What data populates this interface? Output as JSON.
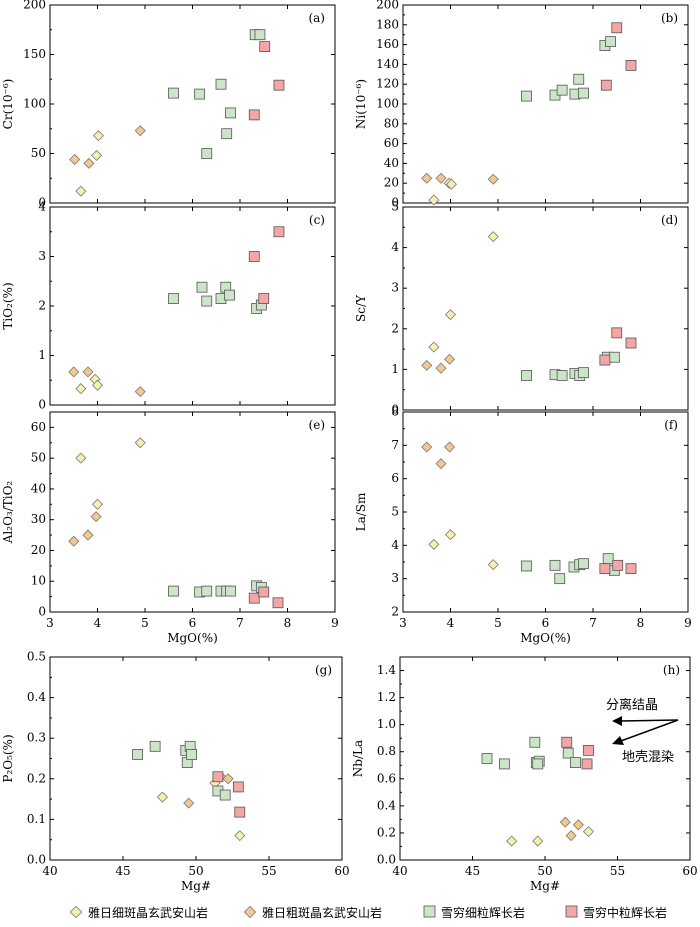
{
  "legend": {
    "items": [
      {
        "label": "雅日细斑晶玄武安山岩",
        "marker": "diamond",
        "color": "#f5f0b0"
      },
      {
        "label": "雅日粗斑晶玄武安山岩",
        "marker": "diamond",
        "color": "#f0c890"
      },
      {
        "label": "雪穷细粒辉长岩",
        "marker": "square",
        "color": "#cce4c8"
      },
      {
        "label": "雪穷中粒辉长岩",
        "marker": "square",
        "color": "#f4a6a6"
      }
    ]
  },
  "chart_data": [
    {
      "type": "scatter",
      "panel": "a",
      "tag": "(a)",
      "ylabel": "Cr(10⁻⁶)",
      "xlabel": "",
      "xlim": [
        3,
        9
      ],
      "ylim": [
        0,
        200
      ],
      "xticks": [],
      "yticks": [
        "0",
        "50",
        "100",
        "150",
        "200"
      ],
      "series": [
        {
          "name": "雅日细斑晶玄武安山岩",
          "points": [
            [
              3.65,
              12
            ],
            [
              3.98,
              48
            ],
            [
              4.02,
              68
            ]
          ]
        },
        {
          "name": "雅日粗斑晶玄武安山岩",
          "points": [
            [
              3.52,
              44
            ],
            [
              3.82,
              40
            ],
            [
              4.9,
              73
            ]
          ]
        },
        {
          "name": "雪穷细粒辉长岩",
          "points": [
            [
              5.6,
              111
            ],
            [
              6.15,
              110
            ],
            [
              6.3,
              50
            ],
            [
              6.6,
              120
            ],
            [
              6.72,
              70
            ],
            [
              6.8,
              91
            ],
            [
              7.32,
              170
            ],
            [
              7.42,
              170
            ]
          ]
        },
        {
          "name": "雪穷中粒辉长岩",
          "points": [
            [
              7.3,
              89
            ],
            [
              7.52,
              158
            ],
            [
              7.82,
              119
            ]
          ]
        }
      ]
    },
    {
      "type": "scatter",
      "panel": "b",
      "tag": "(b)",
      "ylabel": "Ni(10⁻⁶)",
      "xlabel": "",
      "xlim": [
        3,
        9
      ],
      "ylim": [
        0,
        200
      ],
      "xticks": [],
      "yticks": [
        "0",
        "20",
        "40",
        "60",
        "80",
        "100",
        "120",
        "140",
        "160",
        "180",
        "200"
      ],
      "series": [
        {
          "name": "雅日细斑晶玄武安山岩",
          "points": [
            [
              3.65,
              3
            ],
            [
              3.97,
              20
            ],
            [
              4.02,
              19
            ]
          ]
        },
        {
          "name": "雅日粗斑晶玄武安山岩",
          "points": [
            [
              3.5,
              25
            ],
            [
              3.8,
              25
            ],
            [
              4.9,
              24
            ]
          ]
        },
        {
          "name": "雪穷细粒辉长岩",
          "points": [
            [
              5.6,
              108
            ],
            [
              6.2,
              109
            ],
            [
              6.35,
              114
            ],
            [
              6.62,
              110
            ],
            [
              6.7,
              125
            ],
            [
              6.8,
              111
            ],
            [
              7.25,
              159
            ],
            [
              7.37,
              163
            ]
          ]
        },
        {
          "name": "雪穷中粒辉长岩",
          "points": [
            [
              7.28,
              119
            ],
            [
              7.5,
              177
            ],
            [
              7.8,
              139
            ]
          ]
        }
      ]
    },
    {
      "type": "scatter",
      "panel": "c",
      "tag": "(c)",
      "ylabel": "TiO₂(%)",
      "xlabel": "",
      "xlim": [
        3,
        9
      ],
      "ylim": [
        0,
        4
      ],
      "xticks": [],
      "yticks": [
        "0",
        "1",
        "2",
        "3",
        "4"
      ],
      "series": [
        {
          "name": "雅日细斑晶玄武安山岩",
          "points": [
            [
              3.65,
              0.33
            ],
            [
              3.95,
              0.52
            ],
            [
              4.0,
              0.4
            ]
          ]
        },
        {
          "name": "雅日粗斑晶玄武安山岩",
          "points": [
            [
              3.5,
              0.67
            ],
            [
              3.8,
              0.67
            ],
            [
              4.9,
              0.27
            ]
          ]
        },
        {
          "name": "雪穷细粒辉长岩",
          "points": [
            [
              5.6,
              2.15
            ],
            [
              6.2,
              2.38
            ],
            [
              6.3,
              2.1
            ],
            [
              6.6,
              2.15
            ],
            [
              6.7,
              2.38
            ],
            [
              6.78,
              2.22
            ],
            [
              7.35,
              1.95
            ],
            [
              7.45,
              2.02
            ]
          ]
        },
        {
          "name": "雪穷中粒辉长岩",
          "points": [
            [
              7.3,
              3.0
            ],
            [
              7.5,
              2.15
            ],
            [
              7.82,
              3.5
            ]
          ]
        }
      ]
    },
    {
      "type": "scatter",
      "panel": "d",
      "tag": "(d)",
      "ylabel": "Sc/Y",
      "xlabel": "",
      "xlim": [
        3,
        9
      ],
      "ylim": [
        0,
        5
      ],
      "xticks": [],
      "yticks": [
        "0",
        "1",
        "2",
        "3",
        "4",
        "5"
      ],
      "series": [
        {
          "name": "雅日细斑晶玄武安山岩",
          "points": [
            [
              3.65,
              1.55
            ],
            [
              4.0,
              2.35
            ],
            [
              4.9,
              4.27
            ]
          ]
        },
        {
          "name": "雅日粗斑晶玄武安山岩",
          "points": [
            [
              3.5,
              1.1
            ],
            [
              3.8,
              1.03
            ],
            [
              3.98,
              1.25
            ]
          ]
        },
        {
          "name": "雪穷细粒辉长岩",
          "points": [
            [
              5.6,
              0.85
            ],
            [
              6.2,
              0.87
            ],
            [
              6.35,
              0.85
            ],
            [
              6.62,
              0.9
            ],
            [
              6.72,
              0.85
            ],
            [
              6.8,
              0.92
            ],
            [
              7.3,
              1.3
            ],
            [
              7.45,
              1.3
            ]
          ]
        },
        {
          "name": "雪穷中粒辉长岩",
          "points": [
            [
              7.25,
              1.23
            ],
            [
              7.5,
              1.9
            ],
            [
              7.8,
              1.65
            ]
          ]
        }
      ]
    },
    {
      "type": "scatter",
      "panel": "e",
      "tag": "(e)",
      "ylabel": "Al₂O₃/TiO₂",
      "xlabel": "MgO(%)",
      "xlim": [
        3,
        9
      ],
      "ylim": [
        0,
        65
      ],
      "xticks": [
        "3",
        "4",
        "5",
        "6",
        "7",
        "8",
        "9"
      ],
      "yticks": [
        "0",
        "10",
        "20",
        "30",
        "40",
        "50",
        "60"
      ],
      "series": [
        {
          "name": "雅日细斑晶玄武安山岩",
          "points": [
            [
              3.65,
              50
            ],
            [
              4.0,
              35
            ],
            [
              4.9,
              55
            ]
          ]
        },
        {
          "name": "雅日粗斑晶玄武安山岩",
          "points": [
            [
              3.5,
              23
            ],
            [
              3.8,
              25
            ],
            [
              3.97,
              31
            ]
          ]
        },
        {
          "name": "雪穷细粒辉长岩",
          "points": [
            [
              5.6,
              6.8
            ],
            [
              6.15,
              6.5
            ],
            [
              6.3,
              6.8
            ],
            [
              6.6,
              6.8
            ],
            [
              6.72,
              6.8
            ],
            [
              6.8,
              6.8
            ],
            [
              7.35,
              8.5
            ],
            [
              7.45,
              8
            ]
          ]
        },
        {
          "name": "雪穷中粒辉长岩",
          "points": [
            [
              7.3,
              4.5
            ],
            [
              7.5,
              6.5
            ],
            [
              7.8,
              3
            ]
          ]
        }
      ]
    },
    {
      "type": "scatter",
      "panel": "f",
      "tag": "(f)",
      "ylabel": "La/Sm",
      "xlabel": "MgO(%)",
      "xlim": [
        3,
        9
      ],
      "ylim": [
        2,
        8
      ],
      "xticks": [
        "3",
        "4",
        "5",
        "6",
        "7",
        "8",
        "9"
      ],
      "yticks": [
        "2",
        "3",
        "4",
        "5",
        "6",
        "7",
        "8"
      ],
      "series": [
        {
          "name": "雅日细斑晶玄武安山岩",
          "points": [
            [
              3.65,
              4.03
            ],
            [
              4.0,
              4.32
            ],
            [
              4.9,
              3.42
            ]
          ]
        },
        {
          "name": "雅日粗斑晶玄武安山岩",
          "points": [
            [
              3.5,
              6.95
            ],
            [
              3.8,
              6.45
            ],
            [
              3.98,
              6.95
            ]
          ]
        },
        {
          "name": "雪穷细粒辉长岩",
          "points": [
            [
              5.6,
              3.38
            ],
            [
              6.2,
              3.4
            ],
            [
              6.3,
              3.0
            ],
            [
              6.6,
              3.35
            ],
            [
              6.72,
              3.42
            ],
            [
              6.8,
              3.45
            ],
            [
              7.32,
              3.6
            ],
            [
              7.45,
              3.25
            ]
          ]
        },
        {
          "name": "雪穷中粒辉长岩",
          "points": [
            [
              7.25,
              3.3
            ],
            [
              7.52,
              3.4
            ],
            [
              7.8,
              3.3
            ]
          ]
        }
      ]
    },
    {
      "type": "scatter",
      "panel": "g",
      "tag": "(g)",
      "ylabel": "P₂O₅(%)",
      "xlabel": "Mg#",
      "xlim": [
        40,
        60
      ],
      "ylim": [
        0,
        0.5
      ],
      "xticks": [
        "40",
        "45",
        "50",
        "55",
        "60"
      ],
      "yticks": [
        "0.0",
        "0.1",
        "0.2",
        "0.3",
        "0.4",
        "0.5"
      ],
      "series": [
        {
          "name": "雅日细斑晶玄武安山岩",
          "points": [
            [
              47.7,
              0.155
            ],
            [
              51.3,
              0.19
            ],
            [
              53.0,
              0.06
            ]
          ]
        },
        {
          "name": "雅日粗斑晶玄武安山岩",
          "points": [
            [
              49.5,
              0.14
            ],
            [
              51.7,
              0.205
            ],
            [
              52.2,
              0.2
            ]
          ]
        },
        {
          "name": "雪穷细粒辉长岩",
          "points": [
            [
              46.0,
              0.26
            ],
            [
              47.2,
              0.28
            ],
            [
              49.3,
              0.27
            ],
            [
              49.4,
              0.24
            ],
            [
              49.6,
              0.28
            ],
            [
              49.7,
              0.26
            ],
            [
              51.5,
              0.17
            ],
            [
              52.0,
              0.16
            ]
          ]
        },
        {
          "name": "雪穷中粒辉长岩",
          "points": [
            [
              51.5,
              0.205
            ],
            [
              52.9,
              0.18
            ],
            [
              53.0,
              0.118
            ]
          ]
        }
      ]
    },
    {
      "type": "scatter",
      "panel": "h",
      "tag": "(h)",
      "ylabel": "Nb/La",
      "xlabel": "Mg#",
      "xlim": [
        40,
        60
      ],
      "ylim": [
        0,
        1.5
      ],
      "xticks": [
        "40",
        "45",
        "50",
        "55",
        "60"
      ],
      "yticks": [
        "0.0",
        "0.2",
        "0.4",
        "0.6",
        "0.8",
        "1.0",
        "1.2",
        "1.4"
      ],
      "annotations": [
        "分离结晶",
        "地壳混染"
      ],
      "series": [
        {
          "name": "雅日细斑晶玄武安山岩",
          "points": [
            [
              47.7,
              0.14
            ],
            [
              49.5,
              0.14
            ],
            [
              53.0,
              0.21
            ]
          ]
        },
        {
          "name": "雅日粗斑晶玄武安山岩",
          "points": [
            [
              51.4,
              0.28
            ],
            [
              51.8,
              0.18
            ],
            [
              52.3,
              0.26
            ]
          ]
        },
        {
          "name": "雪穷细粒辉长岩",
          "points": [
            [
              46.0,
              0.75
            ],
            [
              47.2,
              0.71
            ],
            [
              49.3,
              0.87
            ],
            [
              49.4,
              0.72
            ],
            [
              49.6,
              0.73
            ],
            [
              51.6,
              0.79
            ],
            [
              52.1,
              0.72
            ],
            [
              49.5,
              0.71
            ]
          ]
        },
        {
          "name": "雪穷中粒辉长岩",
          "points": [
            [
              51.5,
              0.87
            ],
            [
              52.9,
              0.71
            ],
            [
              53.0,
              0.81
            ]
          ]
        }
      ]
    }
  ]
}
